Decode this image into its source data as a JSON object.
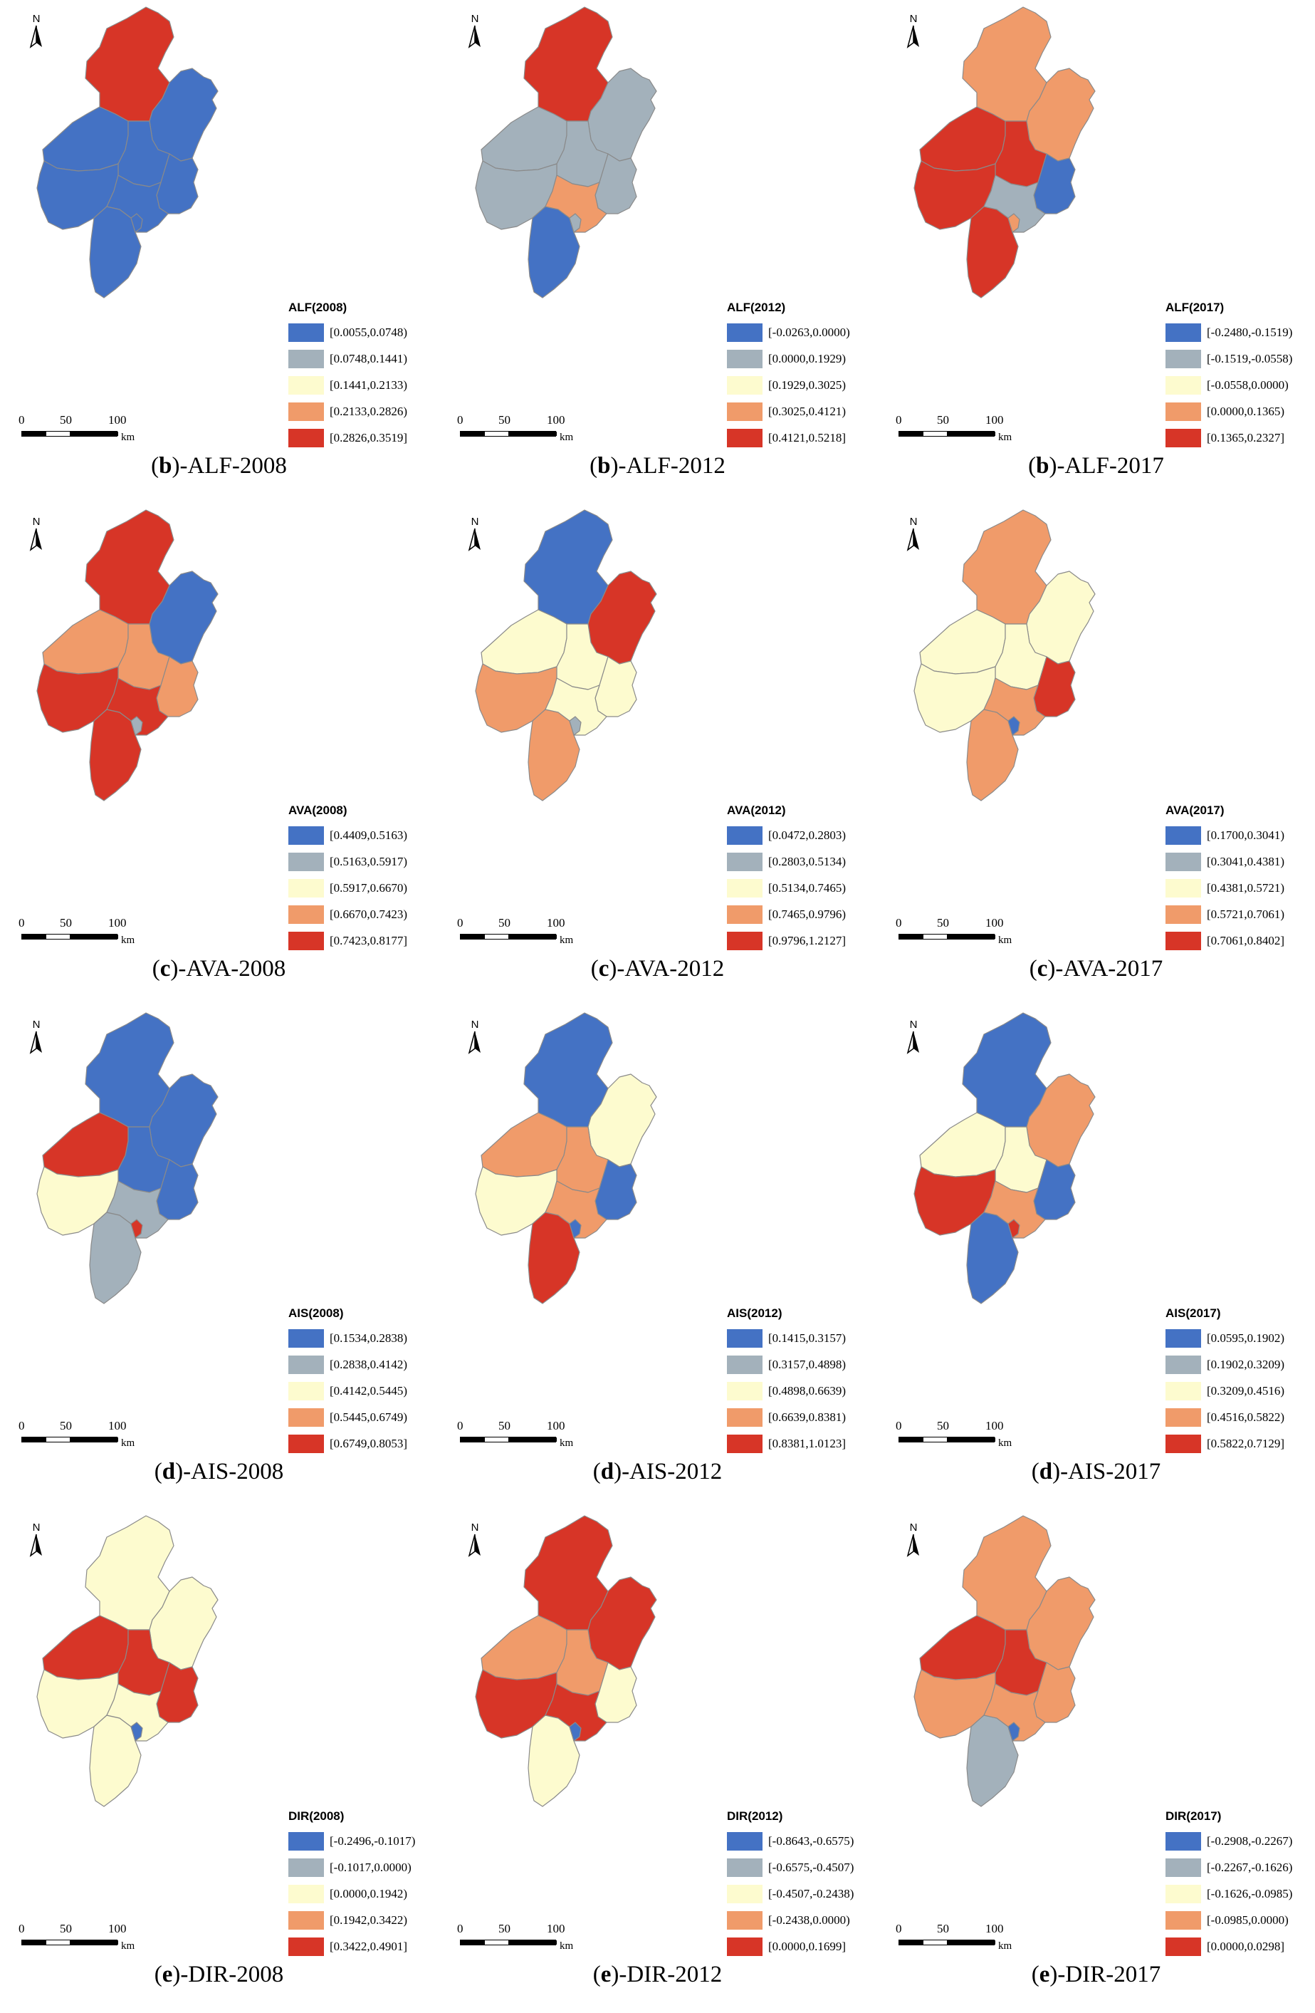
{
  "colors": {
    "blue": "#4472c4",
    "gray": "#a3b1bb",
    "yellow": "#fdfbcf",
    "orange": "#f09b6a",
    "red": "#d73527"
  },
  "compass_label": "N",
  "scale": {
    "ticks": [
      "0",
      "50",
      "100"
    ],
    "unit": "km"
  },
  "rows": [
    {
      "indicator": "ALF",
      "panels": [
        {
          "caption_letter": "b",
          "caption_suffix": ")-ALF-2008",
          "legend_title": "ALF(2008)",
          "classes": [
            "[0.0055,0.0748)",
            "[0.0748,0.1441)",
            "[0.1441,0.2133)",
            "[0.2133,0.2826)",
            "[0.2826,0.3519]"
          ],
          "regions": {
            "N": "red",
            "NE": "blue",
            "W": "blue",
            "C": "blue",
            "E": "blue",
            "SW": "blue",
            "S": "blue",
            "SE": "blue",
            "X": "blue"
          }
        },
        {
          "caption_letter": "b",
          "caption_suffix": ")-ALF-2012",
          "legend_title": "ALF(2012)",
          "classes": [
            "[-0.0263,0.0000)",
            "[0.0000,0.1929)",
            "[0.1929,0.3025)",
            "[0.3025,0.4121)",
            "[0.4121,0.5218]"
          ],
          "regions": {
            "N": "red",
            "NE": "gray",
            "W": "gray",
            "C": "gray",
            "E": "gray",
            "SW": "gray",
            "S": "blue",
            "SE": "orange",
            "X": "gray"
          }
        },
        {
          "caption_letter": "b",
          "caption_suffix": ")-ALF-2017",
          "legend_title": "ALF(2017)",
          "classes": [
            "[-0.2480,-0.1519)",
            "[-0.1519,-0.0558)",
            "[-0.0558,0.0000)",
            "[0.0000,0.1365)",
            "[0.1365,0.2327]"
          ],
          "regions": {
            "N": "orange",
            "NE": "orange",
            "W": "red",
            "C": "red",
            "E": "blue",
            "SW": "red",
            "S": "red",
            "SE": "gray",
            "X": "orange"
          }
        }
      ]
    },
    {
      "indicator": "AVA",
      "panels": [
        {
          "caption_letter": "c",
          "caption_suffix": ")-AVA-2008",
          "legend_title": "AVA(2008)",
          "classes": [
            "[0.4409,0.5163)",
            "[0.5163,0.5917)",
            "[0.5917,0.6670)",
            "[0.6670,0.7423)",
            "[0.7423,0.8177]"
          ],
          "regions": {
            "N": "red",
            "NE": "blue",
            "W": "orange",
            "C": "orange",
            "E": "orange",
            "SW": "red",
            "S": "red",
            "SE": "red",
            "X": "gray"
          }
        },
        {
          "caption_letter": "c",
          "caption_suffix": ")-AVA-2012",
          "legend_title": "AVA(2012)",
          "classes": [
            "[0.0472,0.2803)",
            "[0.2803,0.5134)",
            "[0.5134,0.7465)",
            "[0.7465,0.9796)",
            "[0.9796,1.2127]"
          ],
          "regions": {
            "N": "blue",
            "NE": "red",
            "W": "yellow",
            "C": "yellow",
            "E": "yellow",
            "SW": "orange",
            "S": "orange",
            "SE": "yellow",
            "X": "gray"
          }
        },
        {
          "caption_letter": "c",
          "caption_suffix": ")-AVA-2017",
          "legend_title": "AVA(2017)",
          "classes": [
            "[0.1700,0.3041)",
            "[0.3041,0.4381)",
            "[0.4381,0.5721)",
            "[0.5721,0.7061)",
            "[0.7061,0.8402]"
          ],
          "regions": {
            "N": "orange",
            "NE": "yellow",
            "W": "yellow",
            "C": "yellow",
            "E": "red",
            "SW": "yellow",
            "S": "orange",
            "SE": "orange",
            "X": "blue"
          }
        }
      ]
    },
    {
      "indicator": "AIS",
      "panels": [
        {
          "caption_letter": "d",
          "caption_suffix": ")-AIS-2008",
          "legend_title": "AIS(2008)",
          "classes": [
            "[0.1534,0.2838)",
            "[0.2838,0.4142)",
            "[0.4142,0.5445)",
            "[0.5445,0.6749)",
            "[0.6749,0.8053]"
          ],
          "regions": {
            "N": "blue",
            "NE": "blue",
            "W": "red",
            "C": "blue",
            "E": "blue",
            "SW": "yellow",
            "S": "gray",
            "SE": "gray",
            "X": "red"
          }
        },
        {
          "caption_letter": "d",
          "caption_suffix": ")-AIS-2012",
          "legend_title": "AIS(2012)",
          "classes": [
            "[0.1415,0.3157)",
            "[0.3157,0.4898)",
            "[0.4898,0.6639)",
            "[0.6639,0.8381)",
            "[0.8381,1.0123]"
          ],
          "regions": {
            "N": "blue",
            "NE": "yellow",
            "W": "orange",
            "C": "orange",
            "E": "blue",
            "SW": "yellow",
            "S": "red",
            "SE": "orange",
            "X": "blue"
          }
        },
        {
          "caption_letter": "d",
          "caption_suffix": ")-AIS-2017",
          "legend_title": "AIS(2017)",
          "classes": [
            "[0.0595,0.1902)",
            "[0.1902,0.3209)",
            "[0.3209,0.4516)",
            "[0.4516,0.5822)",
            "[0.5822,0.7129]"
          ],
          "regions": {
            "N": "blue",
            "NE": "orange",
            "W": "yellow",
            "C": "yellow",
            "E": "blue",
            "SW": "red",
            "S": "blue",
            "SE": "orange",
            "X": "red"
          }
        }
      ]
    },
    {
      "indicator": "DIR",
      "panels": [
        {
          "caption_letter": "e",
          "caption_suffix": ")-DIR-2008",
          "legend_title": "DIR(2008)",
          "classes": [
            "[-0.2496,-0.1017)",
            "[-0.1017,0.0000)",
            "[0.0000,0.1942)",
            "[0.1942,0.3422)",
            "[0.3422,0.4901]"
          ],
          "regions": {
            "N": "yellow",
            "NE": "yellow",
            "W": "red",
            "C": "red",
            "E": "red",
            "SW": "yellow",
            "S": "yellow",
            "SE": "yellow",
            "X": "blue"
          }
        },
        {
          "caption_letter": "e",
          "caption_suffix": ")-DIR-2012",
          "legend_title": "DIR(2012)",
          "classes": [
            "[-0.8643,-0.6575)",
            "[-0.6575,-0.4507)",
            "[-0.4507,-0.2438)",
            "[-0.2438,0.0000)",
            "[0.0000,0.1699]"
          ],
          "regions": {
            "N": "red",
            "NE": "red",
            "W": "orange",
            "C": "orange",
            "E": "yellow",
            "SW": "red",
            "S": "yellow",
            "SE": "red",
            "X": "blue"
          }
        },
        {
          "caption_letter": "e",
          "caption_suffix": ")-DIR-2017",
          "legend_title": "DIR(2017)",
          "classes": [
            "[-0.2908,-0.2267)",
            "[-0.2267,-0.1626)",
            "[-0.1626,-0.0985)",
            "[-0.0985,0.0000)",
            "[0.0000,0.0298]"
          ],
          "regions": {
            "N": "orange",
            "NE": "orange",
            "W": "red",
            "C": "red",
            "E": "orange",
            "SW": "orange",
            "S": "gray",
            "SE": "orange",
            "X": "blue"
          }
        }
      ]
    }
  ]
}
